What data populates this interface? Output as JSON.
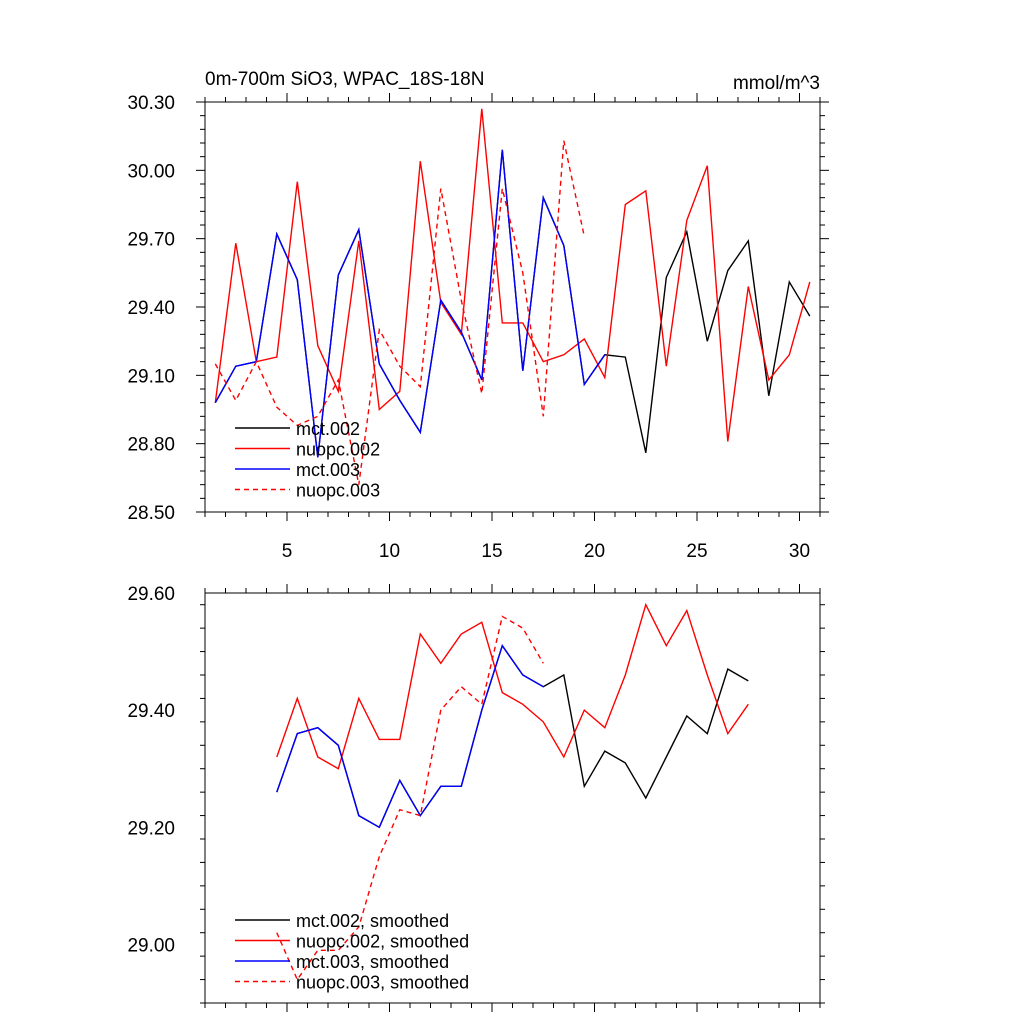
{
  "chart_data": [
    {
      "type": "line",
      "title_left": "0m-700m SiO3, WPAC_18S-18N",
      "title_right": "mmol/m^3",
      "xlim": [
        1,
        31
      ],
      "ylim": [
        28.5,
        30.3
      ],
      "xticks": [
        5,
        10,
        15,
        20,
        25,
        30
      ],
      "xtick_labels": [
        "5",
        "10",
        "15",
        "20",
        "25",
        "30"
      ],
      "yticks": [
        28.5,
        28.8,
        29.1,
        29.4,
        29.7,
        30.0,
        30.3
      ],
      "ytick_labels": [
        "28.50",
        "28.80",
        "29.10",
        "29.40",
        "29.70",
        "30.00",
        "30.30"
      ],
      "legend": {
        "position": "lower-left",
        "entries": [
          "mct.002",
          "nuopc.002",
          "mct.003",
          "nuopc.003"
        ]
      },
      "series": [
        {
          "name": "mct.002",
          "color": "#000000",
          "dash": "solid",
          "x": [
            1.5,
            2.5,
            3.5,
            4.5,
            5.5,
            6.5,
            7.5,
            8.5,
            9.5,
            10.5,
            11.5,
            12.5,
            13.5,
            14.5,
            15.5,
            16.5,
            17.5,
            18.5,
            19.5,
            20.5,
            21.5,
            22.5,
            23.5,
            24.5,
            25.5,
            26.5,
            27.5,
            28.5,
            29.5,
            30.5
          ],
          "y": [
            28.98,
            29.14,
            29.16,
            29.72,
            29.52,
            28.74,
            29.54,
            29.74,
            29.15,
            28.99,
            28.85,
            29.43,
            29.29,
            29.08,
            30.09,
            29.12,
            29.88,
            29.67,
            29.06,
            29.19,
            29.18,
            28.76,
            29.53,
            29.73,
            29.25,
            29.56,
            29.69,
            29.01,
            29.51,
            29.36
          ]
        },
        {
          "name": "nuopc.002",
          "color": "#ff0000",
          "dash": "solid",
          "x": [
            1.5,
            2.5,
            3.5,
            4.5,
            5.5,
            6.5,
            7.5,
            8.5,
            9.5,
            10.5,
            11.5,
            12.5,
            13.5,
            14.5,
            15.5,
            16.5,
            17.5,
            18.5,
            19.5,
            20.5,
            21.5,
            22.5,
            23.5,
            24.5,
            25.5,
            26.5,
            27.5,
            28.5,
            29.5,
            30.5
          ],
          "y": [
            28.98,
            29.68,
            29.16,
            29.18,
            29.95,
            29.23,
            29.03,
            29.69,
            28.95,
            29.03,
            30.04,
            29.42,
            29.28,
            30.27,
            29.33,
            29.33,
            29.16,
            29.19,
            29.26,
            29.09,
            29.85,
            29.91,
            29.14,
            29.78,
            30.02,
            28.81,
            29.49,
            29.08,
            29.19,
            29.51
          ]
        },
        {
          "name": "mct.003",
          "color": "#0000ff",
          "dash": "solid",
          "x": [
            1.5,
            2.5,
            3.5,
            4.5,
            5.5,
            6.5,
            7.5,
            8.5,
            9.5,
            10.5,
            11.5,
            12.5,
            13.5,
            14.5,
            15.5,
            16.5,
            17.5,
            18.5,
            19.5,
            20.5
          ],
          "y": [
            28.98,
            29.14,
            29.16,
            29.72,
            29.52,
            28.74,
            29.54,
            29.74,
            29.15,
            28.99,
            28.85,
            29.43,
            29.29,
            29.08,
            30.09,
            29.12,
            29.88,
            29.67,
            29.06,
            29.19
          ]
        },
        {
          "name": "nuopc.003",
          "color": "#ff0000",
          "dash": "dashed",
          "x": [
            1.5,
            2.5,
            3.5,
            4.5,
            5.5,
            6.5,
            7.5,
            8.5,
            9.5,
            10.5,
            11.5,
            12.5,
            13.5,
            14.5,
            15.5,
            16.5,
            17.5,
            18.5,
            19.5
          ],
          "y": [
            29.15,
            28.99,
            29.16,
            28.96,
            28.88,
            28.92,
            29.08,
            28.62,
            29.3,
            29.14,
            29.05,
            29.92,
            29.43,
            29.02,
            29.92,
            29.55,
            28.92,
            30.13,
            29.71
          ]
        }
      ]
    },
    {
      "type": "line",
      "xlim": [
        1,
        31
      ],
      "ylim": [
        28.9,
        29.6
      ],
      "xticks": [
        5,
        10,
        15,
        20,
        25,
        30
      ],
      "yticks": [
        29.0,
        29.2,
        29.4,
        29.6
      ],
      "ytick_labels": [
        "29.00",
        "29.20",
        "29.40",
        "29.60"
      ],
      "legend": {
        "position": "lower-left",
        "entries": [
          "mct.002, smoothed",
          "nuopc.002, smoothed",
          "mct.003, smoothed",
          "nuopc.003, smoothed"
        ]
      },
      "series": [
        {
          "name": "mct.002, smoothed",
          "color": "#000000",
          "dash": "solid",
          "x": [
            4.5,
            5.5,
            6.5,
            7.5,
            8.5,
            9.5,
            10.5,
            11.5,
            12.5,
            13.5,
            14.5,
            15.5,
            16.5,
            17.5,
            18.5,
            19.5,
            20.5,
            21.5,
            22.5,
            23.5,
            24.5,
            25.5,
            26.5,
            27.5
          ],
          "y": [
            29.26,
            29.36,
            29.37,
            29.34,
            29.22,
            29.2,
            29.28,
            29.22,
            29.27,
            29.27,
            29.4,
            29.51,
            29.46,
            29.44,
            29.46,
            29.27,
            29.33,
            29.31,
            29.25,
            29.32,
            29.39,
            29.36,
            29.47,
            29.45
          ]
        },
        {
          "name": "nuopc.002, smoothed",
          "color": "#ff0000",
          "dash": "solid",
          "x": [
            4.5,
            5.5,
            6.5,
            7.5,
            8.5,
            9.5,
            10.5,
            11.5,
            12.5,
            13.5,
            14.5,
            15.5,
            16.5,
            17.5,
            18.5,
            19.5,
            20.5,
            21.5,
            22.5,
            23.5,
            24.5,
            25.5,
            26.5,
            27.5
          ],
          "y": [
            29.32,
            29.42,
            29.32,
            29.3,
            29.42,
            29.35,
            29.35,
            29.53,
            29.48,
            29.53,
            29.55,
            29.43,
            29.41,
            29.38,
            29.32,
            29.4,
            29.37,
            29.46,
            29.58,
            29.51,
            29.57,
            29.46,
            29.36,
            29.41
          ]
        },
        {
          "name": "mct.003, smoothed",
          "color": "#0000ff",
          "dash": "solid",
          "x": [
            4.5,
            5.5,
            6.5,
            7.5,
            8.5,
            9.5,
            10.5,
            11.5,
            12.5,
            13.5,
            14.5,
            15.5,
            16.5,
            17.5
          ],
          "y": [
            29.26,
            29.36,
            29.37,
            29.34,
            29.22,
            29.2,
            29.28,
            29.22,
            29.27,
            29.27,
            29.4,
            29.51,
            29.46,
            29.44
          ]
        },
        {
          "name": "nuopc.003, smoothed",
          "color": "#ff0000",
          "dash": "dashed",
          "x": [
            4.5,
            5.5,
            6.5,
            7.5,
            8.5,
            9.5,
            10.5,
            11.5,
            12.5,
            13.5,
            14.5,
            15.5,
            16.5,
            17.5
          ],
          "y": [
            29.02,
            28.94,
            28.99,
            28.99,
            29.03,
            29.15,
            29.23,
            29.22,
            29.4,
            29.44,
            29.41,
            29.56,
            29.54,
            29.48
          ]
        }
      ]
    }
  ]
}
